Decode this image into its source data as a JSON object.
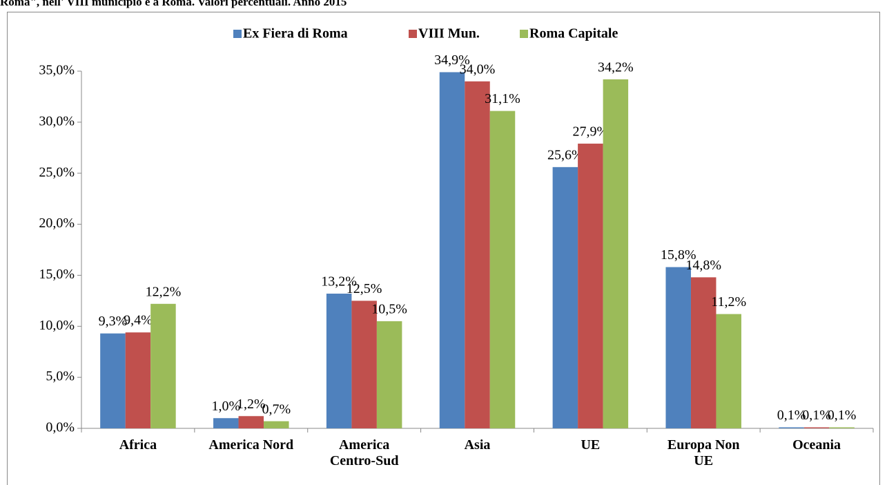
{
  "chart_data": {
    "type": "bar",
    "title": "Roma\", nell' VIII municipio e a Roma. Valori percentuali. Anno 2015",
    "categories": [
      "Africa",
      "America Nord",
      "America Centro-Sud",
      "Asia",
      "UE",
      "Europa Non UE",
      "Oceania"
    ],
    "series": [
      {
        "name": "Ex Fiera di Roma",
        "color": "#4f81bd",
        "values": [
          9.3,
          1.0,
          13.2,
          34.9,
          25.6,
          15.8,
          0.1
        ],
        "value_labels": [
          "9,3%",
          "1,0%",
          "13,2%",
          "34,9%",
          "25,6%",
          "15,8%",
          "0,1%"
        ]
      },
      {
        "name": "VIII Mun.",
        "color": "#c0504d",
        "values": [
          9.4,
          1.2,
          12.5,
          34.0,
          27.9,
          14.8,
          0.1
        ],
        "value_labels": [
          "9,4%",
          "1,2%",
          "12,5%",
          "34,0%",
          "27,9%",
          "14,8%",
          "0,1%"
        ]
      },
      {
        "name": "Roma Capitale",
        "color": "#9bbb59",
        "values": [
          12.2,
          0.7,
          10.5,
          31.1,
          34.2,
          11.2,
          0.1
        ],
        "value_labels": [
          "12,2%",
          "0,7%",
          "10,5%",
          "31,1%",
          "34,2%",
          "11,2%",
          "0,1%"
        ]
      }
    ],
    "ylim": [
      0,
      35
    ],
    "yticks": [
      {
        "value": 0,
        "label": "0,0%"
      },
      {
        "value": 5,
        "label": "5,0%"
      },
      {
        "value": 10,
        "label": "10,0%"
      },
      {
        "value": 15,
        "label": "15,0%"
      },
      {
        "value": 20,
        "label": "20,0%"
      },
      {
        "value": 25,
        "label": "25,0%"
      },
      {
        "value": 30,
        "label": "30,0%"
      },
      {
        "value": 35,
        "label": "35,0%"
      }
    ],
    "legend": "top",
    "grid": false
  }
}
